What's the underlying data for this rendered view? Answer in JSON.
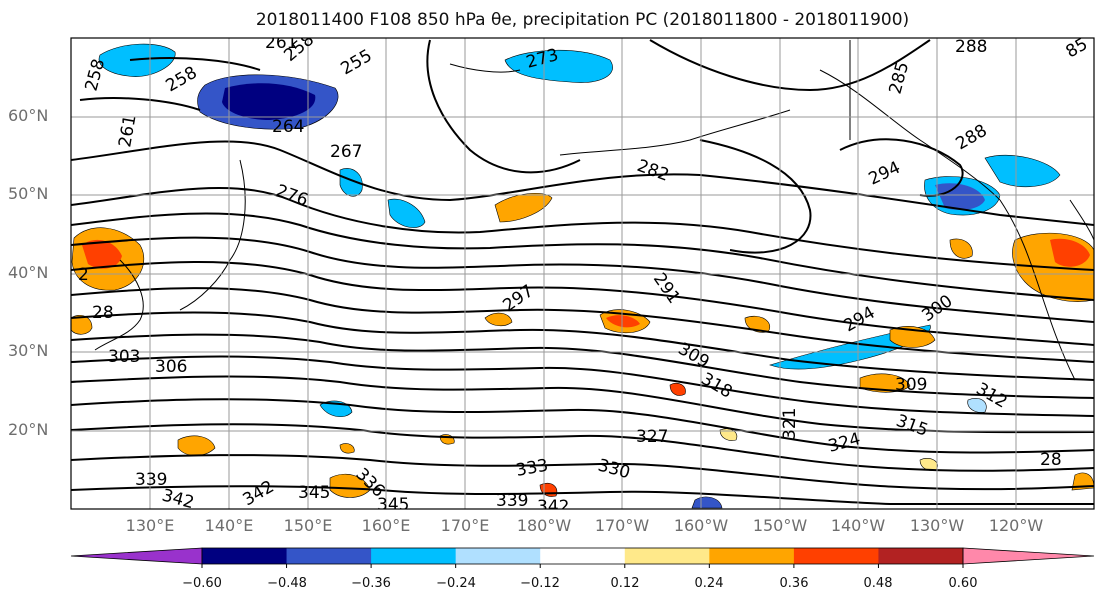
{
  "title": "2018011400 F108 850 hPa θe, precipitation PC (2018011800 - 2018011900)",
  "latitude_labels": [
    "60°N",
    "50°N",
    "40°N",
    "30°N",
    "20°N"
  ],
  "longitude_labels": [
    "130°E",
    "140°E",
    "150°E",
    "160°E",
    "170°E",
    "180°W",
    "170°W",
    "160°W",
    "150°W",
    "140°W",
    "130°W",
    "120°W"
  ],
  "contour_labels": {
    "c1": "261",
    "c2": "258",
    "c3": "258",
    "c4": "255",
    "c5": "258",
    "c6": "261",
    "c7": "264",
    "c8": "267",
    "c9": "276",
    "c10": "273",
    "c11": "282",
    "c12": "288",
    "c13": "285",
    "c14": "294",
    "c15": "288",
    "c16": "28",
    "c17": "297",
    "c18": "291",
    "c19": "294",
    "c20": "300",
    "c21": "303",
    "c22": "306",
    "c23": "309",
    "c24": "318",
    "c25": "321",
    "c26": "309",
    "c27": "312",
    "c28": "315",
    "c29": "324",
    "c30": "327",
    "c31": "330",
    "c32": "333",
    "c33": "336",
    "c34": "339",
    "c35": "342",
    "c36": "345",
    "c37": "345",
    "c38": "339",
    "c39": "342",
    "c40": "342",
    "c41": "2",
    "c42": "28",
    "c43": "85"
  },
  "colorbar": {
    "colors": [
      "#9932cc",
      "#000080",
      "#3455c8",
      "#00bfff",
      "#b0e0ff",
      "#ffffff",
      "#ffe98a",
      "#ffa500",
      "#ff4000",
      "#b22222",
      "#ff88aa"
    ],
    "tick_labels": [
      "−0.60",
      "−0.48",
      "−0.36",
      "−0.24",
      "−0.12",
      "0.12",
      "0.24",
      "0.36",
      "0.48",
      "0.60"
    ]
  }
}
